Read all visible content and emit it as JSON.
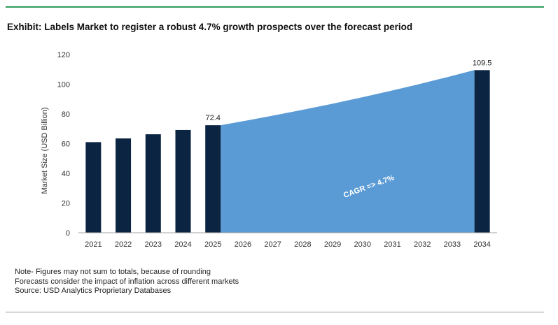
{
  "exhibit_title": "Exhibit: Labels Market to register a robust 4.7% growth prospects over the forecast period",
  "colors": {
    "bar": "#0b2442",
    "area": "#5b9bd5",
    "top_rule": "#2e9c5a",
    "axis": "#a6a6a6"
  },
  "chart_data": {
    "type": "bar",
    "title": "",
    "ylabel": "Market Size (USD Billion)",
    "xlabel": "",
    "ylim": [
      0,
      120
    ],
    "yticks": [
      0,
      20,
      40,
      60,
      80,
      100,
      120
    ],
    "grid": false,
    "categories": [
      "2021",
      "2022",
      "2023",
      "2024",
      "2025",
      "2026",
      "2027",
      "2028",
      "2029",
      "2030",
      "2031",
      "2032",
      "2033",
      "2034"
    ],
    "bars": [
      {
        "category": "2021",
        "value": 61
      },
      {
        "category": "2022",
        "value": 63.5
      },
      {
        "category": "2023",
        "value": 66.3
      },
      {
        "category": "2024",
        "value": 69.2
      },
      {
        "category": "2025",
        "value": 72.4,
        "label": "72.4"
      },
      {
        "category": "2034",
        "value": 109.5,
        "label": "109.5"
      }
    ],
    "area": {
      "from": "2025",
      "to": "2034",
      "values": [
        72.4,
        75.8,
        79.4,
        83.1,
        87.0,
        91.1,
        95.4,
        99.9,
        104.6,
        109.5
      ]
    },
    "annotation": "CAGR => 4.7%"
  },
  "notes": [
    "Note- Figures may not sum to totals, because of rounding",
    "Forecasts consider the impact of inflation across different markets",
    "Source: USD Analytics Proprietary Databases"
  ]
}
